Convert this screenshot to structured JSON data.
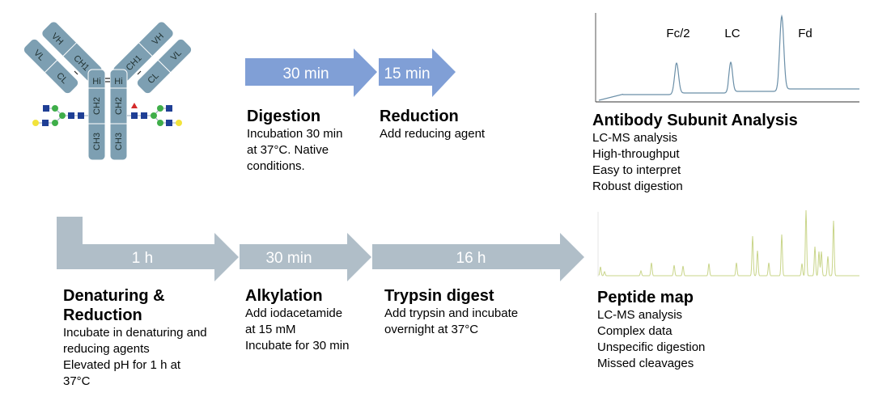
{
  "colors": {
    "blue_arrow": "#809fd6",
    "gray_arrow": "#b0bec8",
    "antibody": "#7d9fb2",
    "chrom_top": "#6b8fa8",
    "chrom_bottom": "#c9d58a"
  },
  "antibody": {
    "labels": {
      "vh": "VH",
      "vl": "VL",
      "ch1": "CH1",
      "cl": "CL",
      "hinge": "Hi",
      "ch2": "CH2",
      "ch3": "CH3"
    }
  },
  "top_flow": {
    "arrows": [
      {
        "label": "30 min"
      },
      {
        "label": "15 min"
      }
    ],
    "steps": [
      {
        "title": "Digestion",
        "lines": [
          "Incubation 30 min",
          "at 37°C. Native",
          "conditions."
        ]
      },
      {
        "title": "Reduction",
        "lines": [
          "Add reducing agent"
        ]
      }
    ],
    "result": {
      "title": "Antibody Subunit Analysis",
      "lines": [
        "LC-MS analysis",
        "High-throughput",
        "Easy to interpret",
        "Robust digestion"
      ]
    },
    "peaks": [
      "Fc/2",
      "LC",
      "Fd"
    ]
  },
  "bottom_flow": {
    "arrows": [
      {
        "label": "1 h"
      },
      {
        "label": "30 min"
      },
      {
        "label": "16 h"
      }
    ],
    "steps": [
      {
        "title_lines": [
          "Denaturing &",
          "Reduction"
        ],
        "lines": [
          "Incubate in denaturing and",
          "reducing agents",
          "Elevated pH for 1 h at",
          "37°C"
        ]
      },
      {
        "title": "Alkylation",
        "lines": [
          "Add iodacetamide",
          "at 15 mM",
          "Incubate for 30 min"
        ]
      },
      {
        "title": "Trypsin digest",
        "lines": [
          "Add trypsin and incubate",
          "overnight at 37°C"
        ]
      }
    ],
    "result": {
      "title": "Peptide map",
      "lines": [
        "LC-MS analysis",
        "Complex data",
        "Unspecific digestion",
        "Missed cleavages"
      ]
    }
  }
}
